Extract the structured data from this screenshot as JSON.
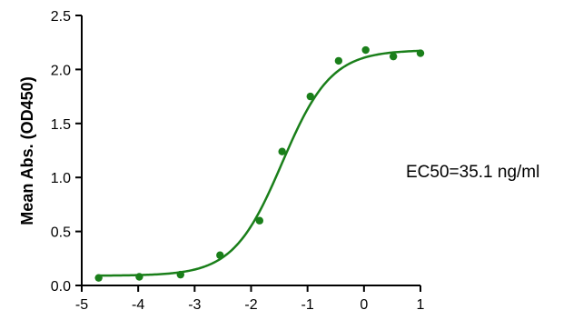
{
  "chart_data": {
    "type": "scatter",
    "title": "",
    "xlabel": "",
    "ylabel": "Mean Abs. (OD450)",
    "xlim": [
      -5,
      1
    ],
    "ylim": [
      0,
      2.5
    ],
    "x_ticks": [
      -5,
      -4,
      -3,
      -2,
      -1,
      0,
      1
    ],
    "y_ticks": [
      0.0,
      0.5,
      1.0,
      1.5,
      2.0,
      2.5
    ],
    "x_tick_labels": [
      "-5",
      "-4",
      "-3",
      "-2",
      "-1",
      "0",
      "1"
    ],
    "y_tick_labels": [
      "0.0",
      "0.5",
      "1.0",
      "1.5",
      "2.0",
      "2.5"
    ],
    "grid": false,
    "annotation": "EC50=35.1 ng/ml",
    "series": [
      {
        "color": "#1a7f1a",
        "points": [
          {
            "x": -4.7,
            "y": 0.07
          },
          {
            "x": -3.98,
            "y": 0.08
          },
          {
            "x": -3.25,
            "y": 0.1
          },
          {
            "x": -2.55,
            "y": 0.28
          },
          {
            "x": -1.85,
            "y": 0.6
          },
          {
            "x": -1.45,
            "y": 1.24
          },
          {
            "x": -0.95,
            "y": 1.75
          },
          {
            "x": -0.45,
            "y": 2.08
          },
          {
            "x": 0.03,
            "y": 2.18
          },
          {
            "x": 0.52,
            "y": 2.12
          },
          {
            "x": 1.0,
            "y": 2.15
          }
        ],
        "fit": {
          "model": "four-parameter logistic",
          "bottom": 0.09,
          "top": 2.18,
          "log_ec50": -1.45,
          "hill_slope": 1.0,
          "x_range": [
            -4.7,
            1.0
          ]
        }
      }
    ]
  }
}
